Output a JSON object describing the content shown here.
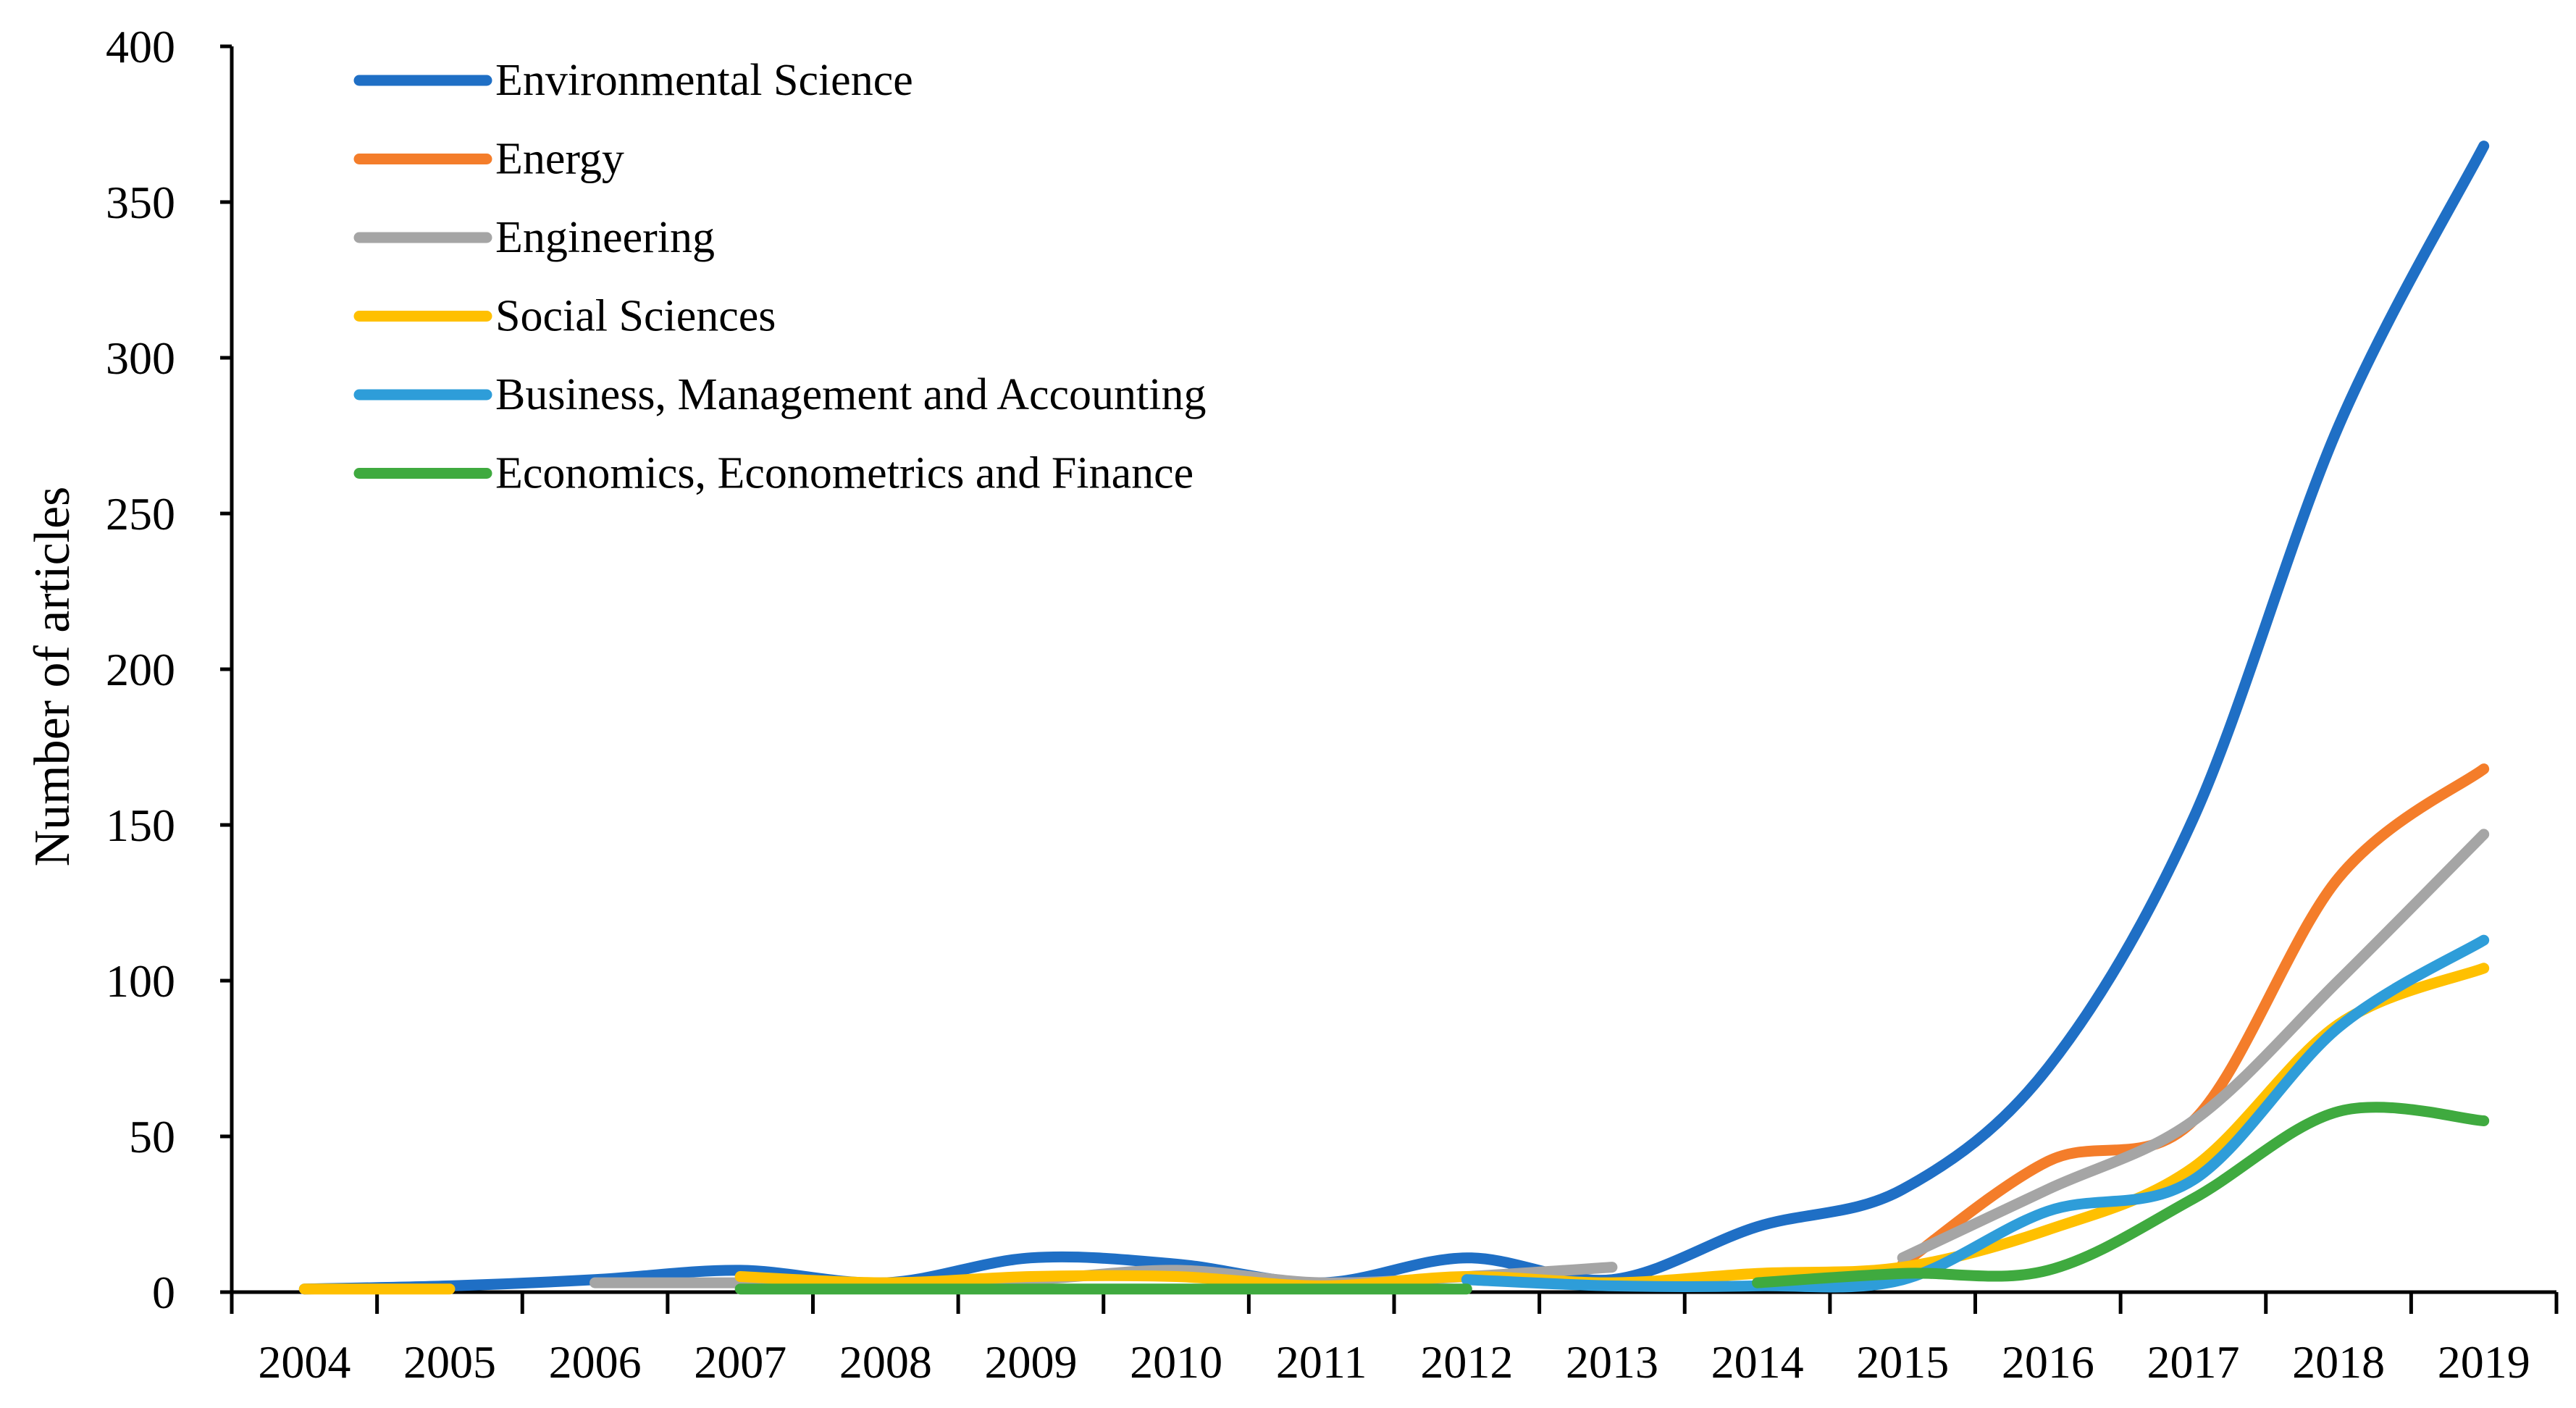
{
  "chart_data": {
    "type": "line",
    "title": "",
    "xlabel": "",
    "ylabel": "Number of articles",
    "ylim": [
      0,
      400
    ],
    "yticks": [
      0,
      50,
      100,
      150,
      200,
      250,
      300,
      350,
      400
    ],
    "categories": [
      "2004",
      "2005",
      "2006",
      "2007",
      "2008",
      "2009",
      "2010",
      "2011",
      "2012",
      "2013",
      "2014",
      "2015",
      "2016",
      "2017",
      "2018",
      "2019"
    ],
    "legend_position": "top-left",
    "grid": false,
    "series": [
      {
        "name": "Environmental Science",
        "color": "#1F6FC5",
        "values": [
          1,
          2,
          4,
          7,
          3,
          11,
          9,
          3,
          11,
          4,
          21,
          33,
          72,
          152,
          278,
          368
        ]
      },
      {
        "name": "Energy",
        "color": "#F47D2A",
        "values": [
          null,
          null,
          null,
          null,
          null,
          null,
          null,
          null,
          null,
          null,
          null,
          9,
          42,
          55,
          133,
          168
        ]
      },
      {
        "name": "Engineering",
        "color": "#A5A5A5",
        "values": [
          null,
          null,
          3,
          3,
          3,
          4,
          7,
          3,
          5,
          8,
          null,
          11,
          33,
          55,
          100,
          147
        ]
      },
      {
        "name": "Social Sciences",
        "color": "#FFC000",
        "values": [
          1,
          1,
          null,
          5,
          3,
          5,
          5,
          2,
          5,
          3,
          6,
          8,
          20,
          40,
          86,
          104
        ]
      },
      {
        "name": "Business, Management and Accounting",
        "color": "#2E9DD9",
        "values": [
          null,
          null,
          null,
          null,
          null,
          null,
          null,
          null,
          4,
          2,
          2,
          4,
          26,
          36,
          85,
          113
        ]
      },
      {
        "name": "Economics, Econometrics and Finance",
        "color": "#3FAA3F",
        "values": [
          null,
          null,
          null,
          1,
          1,
          1,
          1,
          1,
          1,
          null,
          3,
          6,
          7,
          30,
          58,
          55
        ]
      }
    ]
  }
}
